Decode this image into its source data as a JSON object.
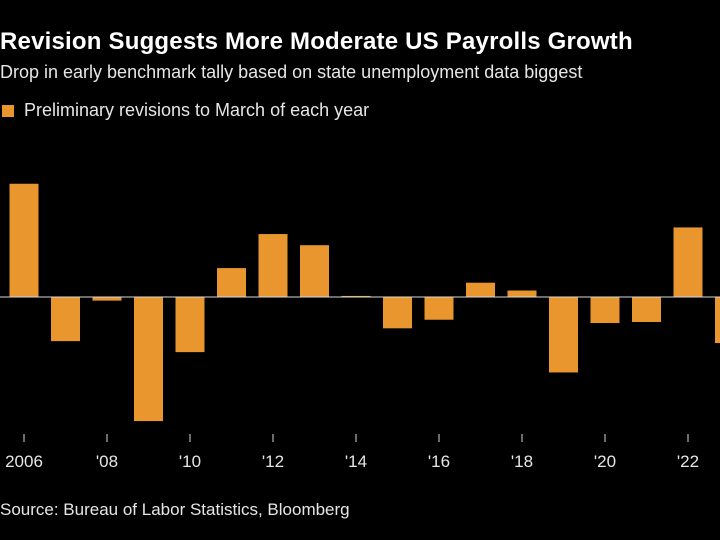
{
  "chart_data": {
    "type": "bar",
    "title": "Revision Suggests More Moderate US Payrolls Growth",
    "subtitle": "Drop in early benchmark tally based on state unemployment data biggest",
    "legend": [
      "Preliminary revisions to March of each year"
    ],
    "source": "Source: Bureau of Labor Statistics, Bloomberg",
    "series": [
      {
        "name": "Preliminary revisions to March of each year",
        "color": "#e8962d",
        "values": [
          752,
          -293,
          -24,
          -824,
          -366,
          192,
          418,
          344,
          7,
          -208,
          -151,
          95,
          43,
          -501,
          -173,
          -166,
          462,
          -306
        ]
      }
    ],
    "x": [
      2006,
      2007,
      2008,
      2009,
      2010,
      2011,
      2012,
      2013,
      2014,
      2015,
      2016,
      2017,
      2018,
      2019,
      2020,
      2021,
      2022,
      2023
    ],
    "xtick_labels": [
      "2006",
      "'08",
      "'10",
      "'12",
      "'14",
      "'16",
      "'18",
      "'20",
      "'22"
    ],
    "xtick_years": [
      2006,
      2008,
      2010,
      2012,
      2014,
      2016,
      2018,
      2020,
      2022
    ],
    "ylim": [
      -900,
      900
    ],
    "xlabel": "",
    "ylabel": ""
  }
}
